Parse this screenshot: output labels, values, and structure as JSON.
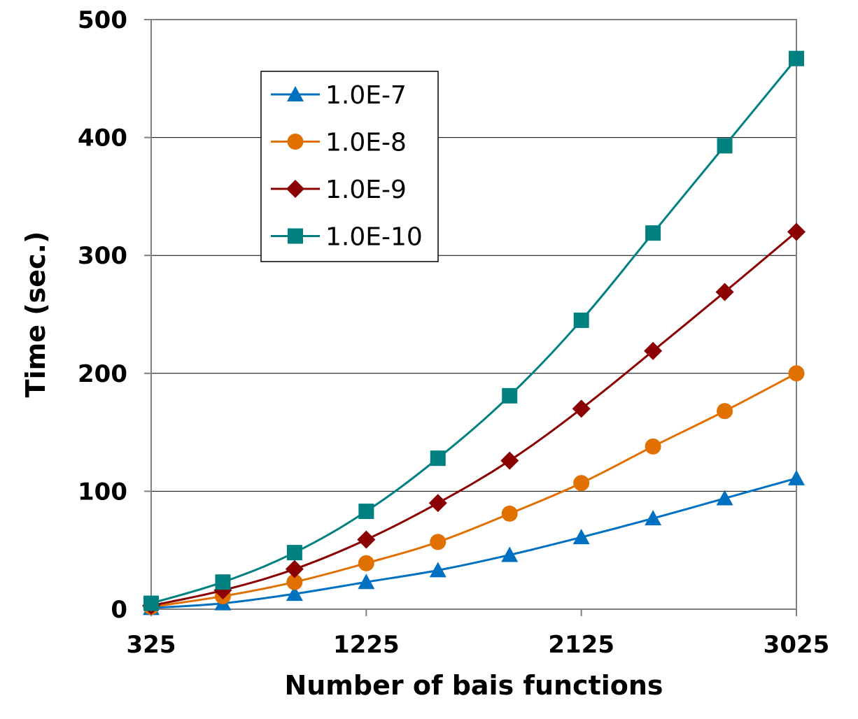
{
  "chart_data": {
    "type": "line",
    "title": "",
    "xlabel": "Number of bais functions",
    "ylabel": "Time (sec.)",
    "xlim": [
      325,
      3025
    ],
    "ylim": [
      0,
      500
    ],
    "xticks": [
      "325",
      "1225",
      "2125",
      "3025"
    ],
    "yticks": [
      "0",
      "100",
      "200",
      "300",
      "400",
      "500"
    ],
    "grid": "horizontal",
    "legend_position": "top-left",
    "x": [
      325,
      625,
      925,
      1225,
      1525,
      1825,
      2125,
      2425,
      2725,
      3025
    ],
    "series": [
      {
        "name": "1.0E-7",
        "color": "#0070C0",
        "marker": "triangle",
        "values": [
          1,
          5,
          13,
          23,
          33,
          46,
          61,
          77,
          94,
          111
        ]
      },
      {
        "name": "1.0E-8",
        "color": "#E07000",
        "marker": "circle",
        "values": [
          2,
          11,
          23,
          39,
          57,
          81,
          107,
          138,
          168,
          200
        ]
      },
      {
        "name": "1.0E-9",
        "color": "#8B0000",
        "marker": "diamond",
        "values": [
          3,
          16,
          34,
          59,
          90,
          126,
          170,
          219,
          269,
          320
        ]
      },
      {
        "name": "1.0E-10",
        "color": "#008080",
        "marker": "square",
        "values": [
          5,
          23,
          48,
          83,
          128,
          181,
          245,
          319,
          393,
          467
        ]
      }
    ]
  }
}
